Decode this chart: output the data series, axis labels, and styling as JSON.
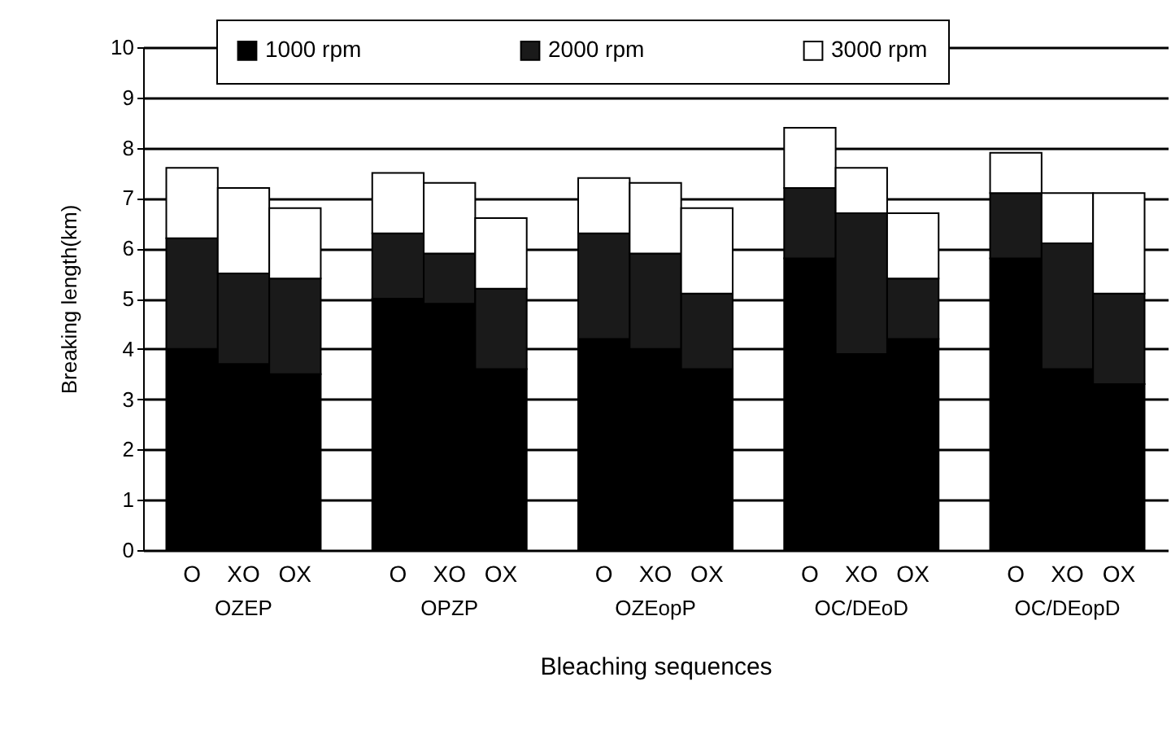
{
  "chart_data": {
    "type": "bar",
    "stacked": true,
    "categories": [
      "O",
      "XO",
      "OX",
      "O",
      "XO",
      "OX",
      "O",
      "XO",
      "OX",
      "O",
      "XO",
      "OX",
      "O",
      "XO",
      "OX"
    ],
    "series": [
      {
        "name": "1000 rpm",
        "color": "#000000",
        "values": [
          4.0,
          3.7,
          3.5,
          5.0,
          4.9,
          3.6,
          4.2,
          4.0,
          3.6,
          5.8,
          3.9,
          4.2,
          5.8,
          3.6,
          3.3
        ]
      },
      {
        "name": "2000 rpm",
        "color": "#1a1a1a",
        "values": [
          2.2,
          1.8,
          1.9,
          1.3,
          1.0,
          1.6,
          2.1,
          1.9,
          1.5,
          1.4,
          2.8,
          1.2,
          1.3,
          2.5,
          1.8
        ]
      },
      {
        "name": "3000 rpm",
        "color": "#ffffff",
        "values": [
          1.4,
          1.7,
          1.4,
          1.2,
          1.4,
          1.4,
          1.1,
          1.4,
          1.7,
          1.2,
          0.9,
          1.3,
          0.8,
          1.0,
          2.0
        ]
      }
    ],
    "annotations": [
      "OZEP",
      "OPZP",
      "OZEopP",
      "OC/DEoD",
      "OC/DEopD"
    ],
    "xlabel": "Bleaching sequences",
    "ylabel": "Breaking length(km)",
    "ylim": [
      0,
      10
    ],
    "yticks": [
      0,
      1,
      2,
      3,
      4,
      5,
      6,
      7,
      8,
      9,
      10
    ],
    "grid": "y",
    "legend": "top"
  }
}
